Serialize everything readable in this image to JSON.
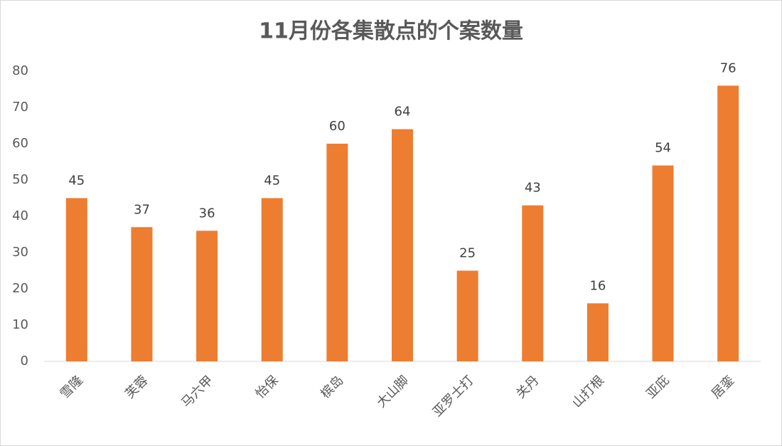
{
  "chart_data": {
    "type": "bar",
    "title": "11月份各集散点的个案数量",
    "categories": [
      "雪隆",
      "芙蓉",
      "马六甲",
      "怡保",
      "槟岛",
      "大山脚",
      "亚罗士打",
      "关丹",
      "山打根",
      "亚庇",
      "居銮"
    ],
    "values": [
      45,
      37,
      36,
      45,
      60,
      64,
      25,
      43,
      16,
      54,
      76
    ],
    "color": "#ed7d31",
    "ylim": [
      0,
      80
    ],
    "yticks": [
      0,
      10,
      20,
      30,
      40,
      50,
      60,
      70,
      80
    ],
    "grid": false
  }
}
